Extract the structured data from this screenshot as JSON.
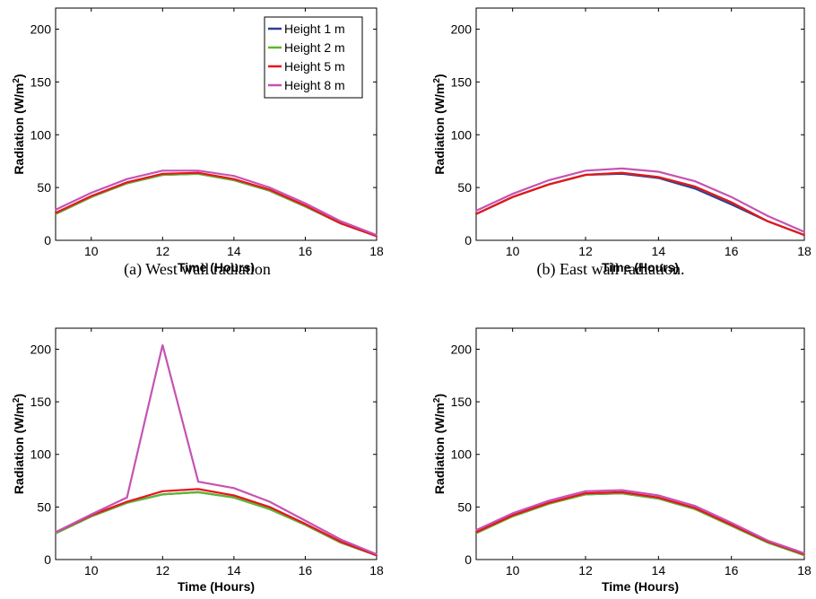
{
  "chart_data": [
    {
      "type": "line",
      "caption": "(a) West wall radiation",
      "xlabel": "Time (Hours)",
      "ylabel": "Radiation (W/m2)",
      "xlim": [
        9,
        18
      ],
      "ylim": [
        0,
        220
      ],
      "xticks": [
        10,
        12,
        14,
        16,
        18
      ],
      "yticks": [
        0,
        50,
        100,
        150,
        200
      ],
      "grid": false,
      "legend": "top-right",
      "x": [
        9,
        10,
        11,
        12,
        13,
        14,
        15,
        16,
        17,
        18
      ],
      "series": [
        {
          "name": "Height 1 m",
          "color": "#2e3f8f",
          "values": [
            25,
            41,
            54,
            62,
            63,
            57,
            47,
            32,
            16,
            4
          ]
        },
        {
          "name": "Height 2 m",
          "color": "#5cb82e",
          "values": [
            25,
            41,
            54,
            62,
            63,
            57,
            47,
            32,
            16,
            4
          ]
        },
        {
          "name": "Height 5 m",
          "color": "#e8141e",
          "values": [
            26,
            42,
            55,
            63,
            64,
            58,
            48,
            33,
            16,
            4
          ]
        },
        {
          "name": "Height 8 m",
          "color": "#c653b4",
          "values": [
            29,
            45,
            58,
            66,
            66,
            61,
            50,
            35,
            18,
            5
          ]
        }
      ]
    },
    {
      "type": "line",
      "caption": "(b) East wall radiation.",
      "xlabel": "Time (Hours)",
      "ylabel": "Radiation (W/m2)",
      "xlim": [
        9,
        18
      ],
      "ylim": [
        0,
        220
      ],
      "xticks": [
        10,
        12,
        14,
        16,
        18
      ],
      "yticks": [
        0,
        50,
        100,
        150,
        200
      ],
      "grid": false,
      "x": [
        9,
        10,
        11,
        12,
        13,
        14,
        15,
        16,
        17,
        18
      ],
      "series": [
        {
          "color": "#2e3f8f",
          "values": [
            25,
            41,
            53,
            62,
            63,
            59,
            49,
            34,
            18,
            5
          ]
        },
        {
          "color": "#5cb82e",
          "values": [
            25,
            41,
            53,
            62,
            64,
            60,
            51,
            36,
            18,
            5
          ]
        },
        {
          "color": "#e8141e",
          "values": [
            25,
            41,
            53,
            62,
            64,
            60,
            51,
            36,
            18,
            5
          ]
        },
        {
          "color": "#c653b4",
          "values": [
            28,
            44,
            57,
            66,
            68,
            65,
            56,
            41,
            23,
            8
          ]
        }
      ]
    },
    {
      "type": "line",
      "caption": "",
      "xlabel": "Time (Hours)",
      "ylabel": "Radiation (W/m2)",
      "xlim": [
        9,
        18
      ],
      "ylim": [
        0,
        220
      ],
      "xticks": [
        10,
        12,
        14,
        16,
        18
      ],
      "yticks": [
        0,
        50,
        100,
        150,
        200
      ],
      "grid": false,
      "x": [
        9,
        10,
        11,
        12,
        13,
        14,
        15,
        16,
        17,
        18
      ],
      "series": [
        {
          "color": "#2e3f8f",
          "values": [
            25,
            41,
            54,
            62,
            64,
            59,
            48,
            33,
            16,
            4
          ]
        },
        {
          "color": "#5cb82e",
          "values": [
            25,
            41,
            54,
            62,
            64,
            59,
            48,
            33,
            16,
            4
          ]
        },
        {
          "color": "#e8141e",
          "values": [
            26,
            42,
            55,
            65,
            67,
            61,
            50,
            34,
            17,
            4
          ]
        },
        {
          "color": "#c653b4",
          "values": [
            26,
            43,
            59,
            204,
            74,
            68,
            55,
            37,
            19,
            5
          ]
        }
      ]
    },
    {
      "type": "line",
      "caption": "",
      "xlabel": "Time (Hours)",
      "ylabel": "Radiation (W/m2)",
      "xlim": [
        9,
        18
      ],
      "ylim": [
        0,
        220
      ],
      "xticks": [
        10,
        12,
        14,
        16,
        18
      ],
      "yticks": [
        0,
        50,
        100,
        150,
        200
      ],
      "grid": false,
      "x": [
        9,
        10,
        11,
        12,
        13,
        14,
        15,
        16,
        17,
        18
      ],
      "series": [
        {
          "color": "#2e3f8f",
          "values": [
            26,
            42,
            54,
            62,
            63,
            58,
            48,
            33,
            17,
            5
          ]
        },
        {
          "color": "#5cb82e",
          "values": [
            25,
            41,
            53,
            62,
            63,
            58,
            48,
            32,
            16,
            4
          ]
        },
        {
          "color": "#e8141e",
          "values": [
            26,
            42,
            54,
            63,
            64,
            59,
            49,
            33,
            17,
            5
          ]
        },
        {
          "color": "#c653b4",
          "values": [
            28,
            44,
            56,
            65,
            66,
            61,
            51,
            35,
            18,
            6
          ]
        }
      ]
    }
  ]
}
